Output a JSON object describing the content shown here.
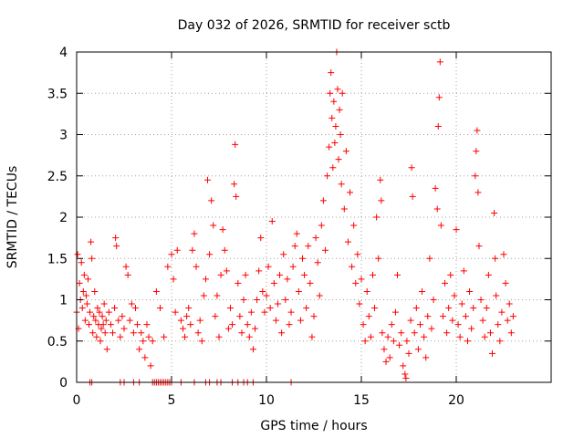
{
  "chart_data": {
    "type": "scatter",
    "title": "Day 032 of 2026, SRMTID for receiver sctb",
    "xlabel": "GPS time / hours",
    "ylabel": "SRMTID / TECUs",
    "xlim": [
      0,
      25
    ],
    "ylim": [
      0,
      4
    ],
    "xticks": [
      "0",
      "5",
      "10",
      "15",
      "20"
    ],
    "xtick_values": [
      0,
      5,
      10,
      15,
      20
    ],
    "yticks": [
      "0",
      "0.5",
      "1",
      "1.5",
      "2",
      "2.5",
      "3",
      "3.5",
      "4"
    ],
    "ytick_values": [
      0,
      0.5,
      1,
      1.5,
      2,
      2.5,
      3,
      3.5,
      4
    ],
    "grid": true,
    "marker": "+",
    "series": [
      {
        "name": "SRMTID",
        "color": "#ff0000",
        "points": [
          [
            0.0,
            0.85
          ],
          [
            0.05,
            1.55
          ],
          [
            0.1,
            0.65
          ],
          [
            0.15,
            1.2
          ],
          [
            0.2,
            1.0
          ],
          [
            0.25,
            1.45
          ],
          [
            0.3,
            0.9
          ],
          [
            0.35,
            1.1
          ],
          [
            0.4,
            1.3
          ],
          [
            0.45,
            0.75
          ],
          [
            0.5,
            1.05
          ],
          [
            0.55,
            0.95
          ],
          [
            0.6,
            1.25
          ],
          [
            0.65,
            0.7
          ],
          [
            0.7,
            0.85
          ],
          [
            0.75,
            1.7
          ],
          [
            0.8,
            1.5
          ],
          [
            0.85,
            0.6
          ],
          [
            0.9,
            0.8
          ],
          [
            0.95,
            1.1
          ],
          [
            1.0,
            0.75
          ],
          [
            1.05,
            0.55
          ],
          [
            1.1,
            0.9
          ],
          [
            1.15,
            0.7
          ],
          [
            1.2,
            0.85
          ],
          [
            1.25,
            0.5
          ],
          [
            1.3,
            0.65
          ],
          [
            1.35,
            0.8
          ],
          [
            1.4,
            0.7
          ],
          [
            1.45,
            0.95
          ],
          [
            1.5,
            0.6
          ],
          [
            1.55,
            0.75
          ],
          [
            1.6,
            0.4
          ],
          [
            1.7,
            0.85
          ],
          [
            1.8,
            0.7
          ],
          [
            1.9,
            0.6
          ],
          [
            2.0,
            0.9
          ],
          [
            2.05,
            1.75
          ],
          [
            2.1,
            1.65
          ],
          [
            2.2,
            0.75
          ],
          [
            2.3,
            0.55
          ],
          [
            2.4,
            0.8
          ],
          [
            2.5,
            0.65
          ],
          [
            2.6,
            1.4
          ],
          [
            2.7,
            1.3
          ],
          [
            2.8,
            0.75
          ],
          [
            2.9,
            0.95
          ],
          [
            3.0,
            0.6
          ],
          [
            3.1,
            0.9
          ],
          [
            3.2,
            0.7
          ],
          [
            3.3,
            0.4
          ],
          [
            3.4,
            0.6
          ],
          [
            3.5,
            0.5
          ],
          [
            3.6,
            0.3
          ],
          [
            3.7,
            0.7
          ],
          [
            3.8,
            0.55
          ],
          [
            3.9,
            0.2
          ],
          [
            4.0,
            0.5
          ],
          [
            4.2,
            1.1
          ],
          [
            4.4,
            0.9
          ],
          [
            4.6,
            0.55
          ],
          [
            4.8,
            1.4
          ],
          [
            5.0,
            1.55
          ],
          [
            5.1,
            1.25
          ],
          [
            5.2,
            0.85
          ],
          [
            5.3,
            1.6
          ],
          [
            5.5,
            0.75
          ],
          [
            5.6,
            0.65
          ],
          [
            5.7,
            0.55
          ],
          [
            5.8,
            0.8
          ],
          [
            5.9,
            0.9
          ],
          [
            6.0,
            0.7
          ],
          [
            6.1,
            1.6
          ],
          [
            6.2,
            1.8
          ],
          [
            6.3,
            1.4
          ],
          [
            6.4,
            0.6
          ],
          [
            6.5,
            0.75
          ],
          [
            6.6,
            0.5
          ],
          [
            6.7,
            1.05
          ],
          [
            6.8,
            1.25
          ],
          [
            6.9,
            2.45
          ],
          [
            7.0,
            1.55
          ],
          [
            7.1,
            2.2
          ],
          [
            7.2,
            1.9
          ],
          [
            7.3,
            0.8
          ],
          [
            7.4,
            1.05
          ],
          [
            7.5,
            0.55
          ],
          [
            7.6,
            1.3
          ],
          [
            7.7,
            1.85
          ],
          [
            7.8,
            1.6
          ],
          [
            7.9,
            1.35
          ],
          [
            8.0,
            0.65
          ],
          [
            8.1,
            0.9
          ],
          [
            8.2,
            0.7
          ],
          [
            8.3,
            2.4
          ],
          [
            8.35,
            2.88
          ],
          [
            8.4,
            2.25
          ],
          [
            8.5,
            1.2
          ],
          [
            8.6,
            0.8
          ],
          [
            8.7,
            0.6
          ],
          [
            8.8,
            1.0
          ],
          [
            8.9,
            1.3
          ],
          [
            9.0,
            0.7
          ],
          [
            9.1,
            0.55
          ],
          [
            9.2,
            0.85
          ],
          [
            9.3,
            0.4
          ],
          [
            9.4,
            0.65
          ],
          [
            9.5,
            1.0
          ],
          [
            9.6,
            1.35
          ],
          [
            9.7,
            1.75
          ],
          [
            9.8,
            1.1
          ],
          [
            9.9,
            0.85
          ],
          [
            10.0,
            1.05
          ],
          [
            10.1,
            1.4
          ],
          [
            10.2,
            0.9
          ],
          [
            10.3,
            1.95
          ],
          [
            10.4,
            1.2
          ],
          [
            10.5,
            0.75
          ],
          [
            10.6,
            0.95
          ],
          [
            10.7,
            1.3
          ],
          [
            10.8,
            0.6
          ],
          [
            10.9,
            1.55
          ],
          [
            11.0,
            1.0
          ],
          [
            11.1,
            1.25
          ],
          [
            11.2,
            0.7
          ],
          [
            11.3,
            0.85
          ],
          [
            11.4,
            1.4
          ],
          [
            11.5,
            1.65
          ],
          [
            11.6,
            1.8
          ],
          [
            11.7,
            1.1
          ],
          [
            11.8,
            0.75
          ],
          [
            11.9,
            1.5
          ],
          [
            12.0,
            1.3
          ],
          [
            12.1,
            0.9
          ],
          [
            12.2,
            1.65
          ],
          [
            12.3,
            1.2
          ],
          [
            12.4,
            0.55
          ],
          [
            12.5,
            0.8
          ],
          [
            12.6,
            1.75
          ],
          [
            12.7,
            1.45
          ],
          [
            12.8,
            1.05
          ],
          [
            12.9,
            1.9
          ],
          [
            13.0,
            2.2
          ],
          [
            13.1,
            1.6
          ],
          [
            13.2,
            2.5
          ],
          [
            13.3,
            2.85
          ],
          [
            13.35,
            3.5
          ],
          [
            13.4,
            3.75
          ],
          [
            13.45,
            3.2
          ],
          [
            13.5,
            2.6
          ],
          [
            13.55,
            3.4
          ],
          [
            13.6,
            2.9
          ],
          [
            13.65,
            3.1
          ],
          [
            13.7,
            4.0
          ],
          [
            13.75,
            3.55
          ],
          [
            13.8,
            2.7
          ],
          [
            13.85,
            3.3
          ],
          [
            13.9,
            3.0
          ],
          [
            13.95,
            2.4
          ],
          [
            14.0,
            3.5
          ],
          [
            14.1,
            2.1
          ],
          [
            14.2,
            2.8
          ],
          [
            14.3,
            1.7
          ],
          [
            14.4,
            2.3
          ],
          [
            14.5,
            1.4
          ],
          [
            14.6,
            1.9
          ],
          [
            14.7,
            1.2
          ],
          [
            14.8,
            1.55
          ],
          [
            14.9,
            0.95
          ],
          [
            15.0,
            1.25
          ],
          [
            15.1,
            0.7
          ],
          [
            15.2,
            0.5
          ],
          [
            15.3,
            1.1
          ],
          [
            15.4,
            0.8
          ],
          [
            15.5,
            0.55
          ],
          [
            15.6,
            1.3
          ],
          [
            15.7,
            0.9
          ],
          [
            15.8,
            2.0
          ],
          [
            15.9,
            1.5
          ],
          [
            16.0,
            2.45
          ],
          [
            16.05,
            2.2
          ],
          [
            16.1,
            0.6
          ],
          [
            16.2,
            0.4
          ],
          [
            16.3,
            0.25
          ],
          [
            16.4,
            0.55
          ],
          [
            16.5,
            0.3
          ],
          [
            16.6,
            0.7
          ],
          [
            16.7,
            0.5
          ],
          [
            16.8,
            0.85
          ],
          [
            16.9,
            1.3
          ],
          [
            17.0,
            0.45
          ],
          [
            17.1,
            0.6
          ],
          [
            17.2,
            0.2
          ],
          [
            17.3,
            0.1
          ],
          [
            17.35,
            0.05
          ],
          [
            17.4,
            0.5
          ],
          [
            17.5,
            0.35
          ],
          [
            17.6,
            0.75
          ],
          [
            17.65,
            2.6
          ],
          [
            17.7,
            2.25
          ],
          [
            17.8,
            0.6
          ],
          [
            17.9,
            0.9
          ],
          [
            18.0,
            0.4
          ],
          [
            18.1,
            0.7
          ],
          [
            18.2,
            1.1
          ],
          [
            18.3,
            0.55
          ],
          [
            18.4,
            0.3
          ],
          [
            18.5,
            0.8
          ],
          [
            18.6,
            1.5
          ],
          [
            18.7,
            0.65
          ],
          [
            18.8,
            1.0
          ],
          [
            18.9,
            2.35
          ],
          [
            19.0,
            2.1
          ],
          [
            19.05,
            3.1
          ],
          [
            19.1,
            3.45
          ],
          [
            19.15,
            3.88
          ],
          [
            19.2,
            1.9
          ],
          [
            19.3,
            0.8
          ],
          [
            19.4,
            1.2
          ],
          [
            19.5,
            0.6
          ],
          [
            19.6,
            0.9
          ],
          [
            19.7,
            1.3
          ],
          [
            19.8,
            0.75
          ],
          [
            19.9,
            1.05
          ],
          [
            20.0,
            1.85
          ],
          [
            20.1,
            0.7
          ],
          [
            20.2,
            0.55
          ],
          [
            20.3,
            0.95
          ],
          [
            20.4,
            1.35
          ],
          [
            20.5,
            0.8
          ],
          [
            20.6,
            0.5
          ],
          [
            20.7,
            1.1
          ],
          [
            20.8,
            0.65
          ],
          [
            20.9,
            0.9
          ],
          [
            21.0,
            2.5
          ],
          [
            21.05,
            2.8
          ],
          [
            21.1,
            3.05
          ],
          [
            21.15,
            2.3
          ],
          [
            21.2,
            1.65
          ],
          [
            21.3,
            1.0
          ],
          [
            21.4,
            0.75
          ],
          [
            21.5,
            0.55
          ],
          [
            21.6,
            0.9
          ],
          [
            21.7,
            1.3
          ],
          [
            21.8,
            0.6
          ],
          [
            21.9,
            0.35
          ],
          [
            22.0,
            2.05
          ],
          [
            22.05,
            1.5
          ],
          [
            22.1,
            1.05
          ],
          [
            22.2,
            0.7
          ],
          [
            22.3,
            0.5
          ],
          [
            22.4,
            0.85
          ],
          [
            22.5,
            1.55
          ],
          [
            22.6,
            1.2
          ],
          [
            22.7,
            0.75
          ],
          [
            22.8,
            0.95
          ],
          [
            22.9,
            0.6
          ],
          [
            23.0,
            0.8
          ]
        ],
        "zero_points_x": [
          0.7,
          0.8,
          2.3,
          2.5,
          3.0,
          3.3,
          4.0,
          4.1,
          4.2,
          4.3,
          4.4,
          4.5,
          4.6,
          4.7,
          4.8,
          4.9,
          5.0,
          5.5,
          6.2,
          6.8,
          7.0,
          7.4,
          7.6,
          8.2,
          8.5,
          8.8,
          9.0,
          9.3,
          11.3
        ]
      }
    ]
  }
}
